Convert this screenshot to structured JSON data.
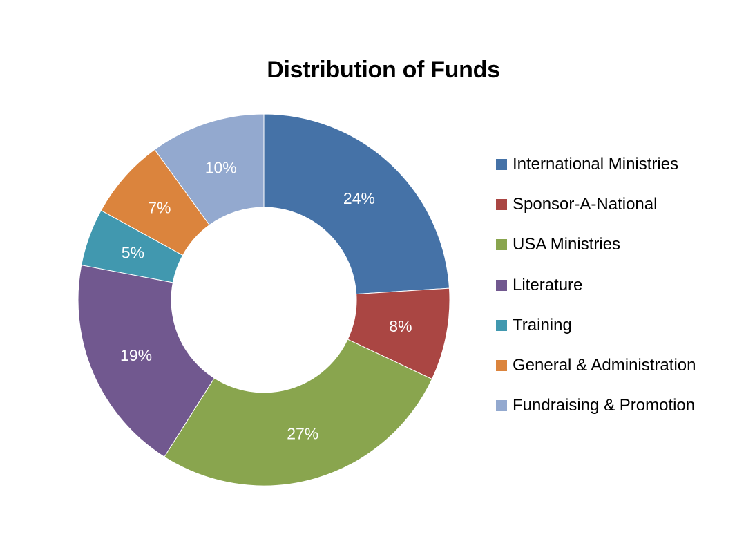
{
  "chart_data": {
    "type": "pie",
    "donut": true,
    "title": "Distribution of Funds",
    "legend_position": "right",
    "categories": [
      "International Ministries",
      "Sponsor-A-National",
      "USA Ministries",
      "Literature",
      "Training",
      "General & Administration",
      "Fundraising & Promotion"
    ],
    "values": [
      24,
      8,
      27,
      19,
      5,
      7,
      10
    ],
    "labels": [
      "24%",
      "8%",
      "27%",
      "19%",
      "5%",
      "7%",
      "10%"
    ],
    "colors": [
      "#4572A7",
      "#AA4643",
      "#89A54E",
      "#71588F",
      "#4198AF",
      "#DB843D",
      "#93A9CF"
    ]
  }
}
